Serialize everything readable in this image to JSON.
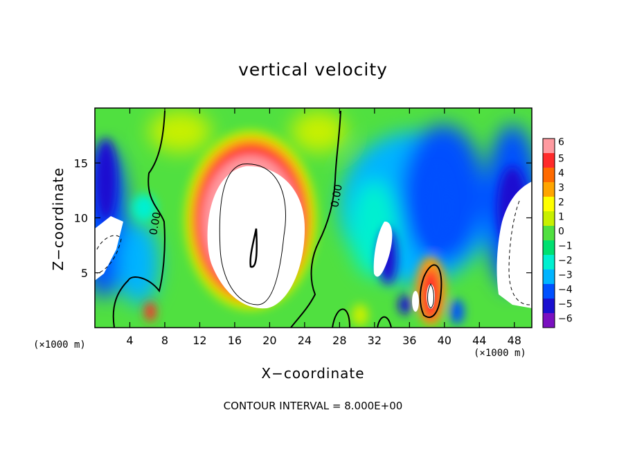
{
  "chart_data": {
    "type": "heatmap",
    "title": "vertical velocity",
    "xlabel": "X−coordinate",
    "ylabel": "Z−coordinate",
    "x_unit_label": "(×1000 m)",
    "xlim": [
      0,
      50
    ],
    "ylim": [
      0,
      20
    ],
    "xticks": [
      4,
      8,
      12,
      16,
      20,
      24,
      28,
      32,
      36,
      40,
      44,
      48
    ],
    "xtick_labels": [
      "4",
      "8",
      "12",
      "16",
      "20",
      "24",
      "28",
      "32",
      "36",
      "40",
      "44",
      "48"
    ],
    "yticks": [
      5,
      10,
      15
    ],
    "ytick_labels": [
      "5",
      "10",
      "15"
    ],
    "colorbar": {
      "levels": [
        6,
        5,
        4,
        3,
        2,
        1,
        0,
        -1,
        -2,
        -3,
        -4,
        -5,
        -6
      ],
      "labels": [
        "6",
        "5",
        "4",
        "3",
        "2",
        "1",
        "0",
        "−1",
        "−2",
        "−3",
        "−4",
        "−5",
        "−6"
      ],
      "colors": [
        "#ff9aa0",
        "#ff2a2a",
        "#ff6a00",
        "#ffa500",
        "#ffff00",
        "#c8f000",
        "#50e040",
        "#00e070",
        "#00f0d0",
        "#00b4ff",
        "#0050ff",
        "#1a10d0",
        "#7a10c0"
      ]
    },
    "contour_labels": [
      "0.00",
      "0.00"
    ],
    "contour_interval_text": "CONTOUR INTERVAL =  8.000E+00",
    "features": [
      {
        "kind": "updraft",
        "x_center": 18,
        "z_center": 9,
        "max": 6
      },
      {
        "kind": "downdraft",
        "x_center": 2,
        "z_center": 11,
        "min": -6
      },
      {
        "kind": "downdraft",
        "x_center": 48,
        "z_center": 10,
        "min": -6
      },
      {
        "kind": "updraft",
        "x_center": 38.5,
        "z_center": 3,
        "max": 6
      }
    ]
  }
}
